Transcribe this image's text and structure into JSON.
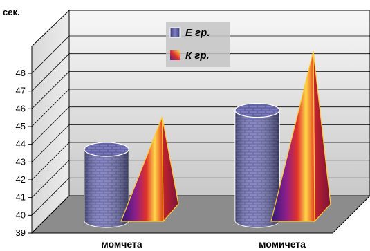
{
  "chart_data": {
    "type": "bar",
    "unit_label": "сек.",
    "categories": [
      "момчета",
      "момичета"
    ],
    "series": [
      {
        "name": "Е гр.",
        "shape": "cylinder",
        "texture": "brick",
        "color": "#5a5a9e",
        "values": [
          42.7,
          44.9
        ]
      },
      {
        "name": "К гр.",
        "shape": "pyramid",
        "texture": "gradient",
        "color": "#d8262c",
        "values": [
          44.6,
          48.3
        ]
      }
    ],
    "ylim": [
      39,
      48
    ],
    "yticks": [
      39,
      40,
      41,
      42,
      43,
      44,
      45,
      46,
      47,
      48
    ],
    "grid": true,
    "legend_position": "top-center"
  }
}
